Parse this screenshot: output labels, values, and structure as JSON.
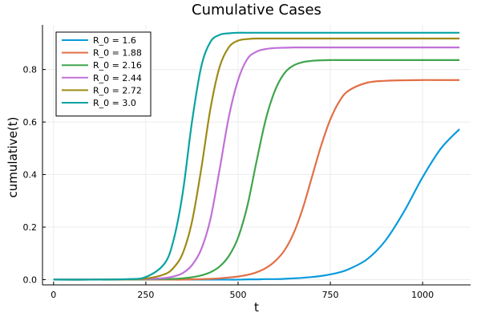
{
  "chart_data": {
    "type": "line",
    "title": "Cumulative Cases",
    "xlabel": "t",
    "ylabel": "cumulative(t)",
    "xlim": [
      -30,
      1130
    ],
    "ylim": [
      -0.02,
      0.97
    ],
    "x_ticks": [
      0,
      250,
      500,
      750,
      1000
    ],
    "x_tick_labels": [
      "0",
      "250",
      "500",
      "750",
      "1000"
    ],
    "y_ticks": [
      0.0,
      0.2,
      0.4,
      0.6,
      0.8
    ],
    "y_tick_labels": [
      "0.0",
      "0.2",
      "0.4",
      "0.6",
      "0.8"
    ],
    "grid": true,
    "legend_position": "top-left",
    "x": [
      0,
      100,
      200,
      250,
      300,
      325,
      350,
      375,
      400,
      425,
      450,
      475,
      500,
      525,
      550,
      575,
      600,
      625,
      650,
      675,
      700,
      725,
      750,
      775,
      800,
      850,
      900,
      950,
      1000,
      1050,
      1100
    ],
    "series": [
      {
        "name": "R_0 = 1.6",
        "color": "#0a9bdd",
        "values": [
          0,
          0,
          0,
          0,
          0,
          0,
          0,
          0,
          0,
          0,
          0,
          0,
          0,
          0.001,
          0.001,
          0.002,
          0.002,
          0.003,
          0.005,
          0.007,
          0.01,
          0.014,
          0.02,
          0.028,
          0.04,
          0.078,
          0.15,
          0.26,
          0.39,
          0.5,
          0.573
        ]
      },
      {
        "name": "R_0 = 1.88",
        "color": "#e26f46",
        "values": [
          0,
          0,
          0,
          0,
          0,
          0,
          0,
          0.001,
          0.002,
          0.003,
          0.005,
          0.008,
          0.012,
          0.018,
          0.028,
          0.044,
          0.07,
          0.11,
          0.175,
          0.27,
          0.39,
          0.51,
          0.61,
          0.68,
          0.72,
          0.75,
          0.757,
          0.759,
          0.76,
          0.76,
          0.76
        ]
      },
      {
        "name": "R_0 = 2.16",
        "color": "#3fa54d",
        "values": [
          0,
          0,
          0,
          0.001,
          0.002,
          0.003,
          0.005,
          0.009,
          0.016,
          0.028,
          0.05,
          0.09,
          0.16,
          0.28,
          0.45,
          0.61,
          0.72,
          0.785,
          0.815,
          0.828,
          0.833,
          0.835,
          0.836,
          0.836,
          0.836,
          0.836,
          0.836,
          0.836,
          0.836,
          0.836,
          0.836
        ]
      },
      {
        "name": "R_0 = 2.44",
        "color": "#c170d7",
        "values": [
          0,
          0,
          0.001,
          0.002,
          0.006,
          0.012,
          0.025,
          0.055,
          0.115,
          0.23,
          0.42,
          0.62,
          0.76,
          0.84,
          0.868,
          0.878,
          0.882,
          0.883,
          0.884,
          0.884,
          0.884,
          0.884,
          0.884,
          0.884,
          0.884,
          0.884,
          0.884,
          0.884,
          0.884,
          0.884,
          0.884
        ]
      },
      {
        "name": "R_0 = 2.72",
        "color": "#9e8b15",
        "values": [
          0,
          0,
          0.001,
          0.004,
          0.02,
          0.045,
          0.1,
          0.22,
          0.42,
          0.65,
          0.81,
          0.885,
          0.91,
          0.916,
          0.918,
          0.918,
          0.918,
          0.918,
          0.918,
          0.918,
          0.918,
          0.918,
          0.918,
          0.918,
          0.918,
          0.918,
          0.918,
          0.918,
          0.918,
          0.918,
          0.918
        ]
      },
      {
        "name": "R_0 = 3.0",
        "color": "#0aa2a2",
        "values": [
          0,
          0,
          0.002,
          0.01,
          0.06,
          0.15,
          0.33,
          0.6,
          0.81,
          0.905,
          0.932,
          0.938,
          0.94,
          0.94,
          0.94,
          0.94,
          0.94,
          0.94,
          0.94,
          0.94,
          0.94,
          0.94,
          0.94,
          0.94,
          0.94,
          0.94,
          0.94,
          0.94,
          0.94,
          0.94,
          0.94
        ]
      }
    ]
  }
}
